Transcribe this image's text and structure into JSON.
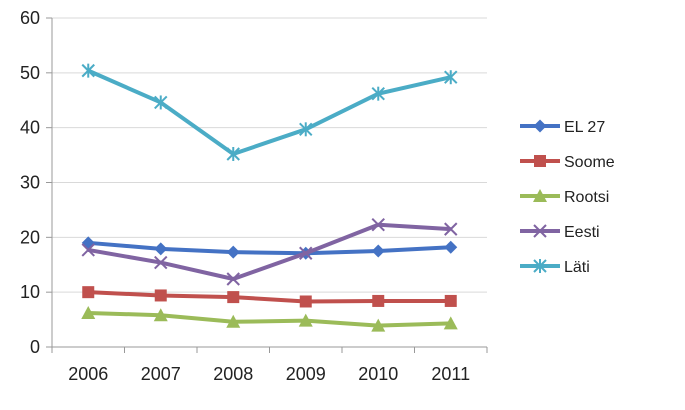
{
  "chart_data": {
    "type": "line",
    "title": "",
    "xlabel": "",
    "ylabel": "",
    "categories": [
      "2006",
      "2007",
      "2008",
      "2009",
      "2010",
      "2011"
    ],
    "ylim": [
      0,
      60
    ],
    "yticks": [
      0,
      10,
      20,
      30,
      40,
      50,
      60
    ],
    "grid": "horizontal",
    "legend_position": "right",
    "series": [
      {
        "name": "EL 27",
        "values": [
          19.0,
          17.9,
          17.3,
          17.1,
          17.5,
          18.2
        ],
        "color": "#4472C4",
        "marker": "diamond"
      },
      {
        "name": "Soome",
        "values": [
          10.0,
          9.4,
          9.1,
          8.3,
          8.4,
          8.4
        ],
        "color": "#C0504D",
        "marker": "square"
      },
      {
        "name": "Rootsi",
        "values": [
          6.2,
          5.8,
          4.6,
          4.8,
          3.9,
          4.3
        ],
        "color": "#9BBB59",
        "marker": "triangle"
      },
      {
        "name": "Eesti",
        "values": [
          17.7,
          15.4,
          12.4,
          17.1,
          22.3,
          21.5
        ],
        "color": "#8064A2",
        "marker": "x"
      },
      {
        "name": "Läti",
        "values": [
          50.4,
          44.6,
          35.2,
          39.7,
          46.2,
          49.2
        ],
        "color": "#4BACC6",
        "marker": "star"
      }
    ]
  }
}
